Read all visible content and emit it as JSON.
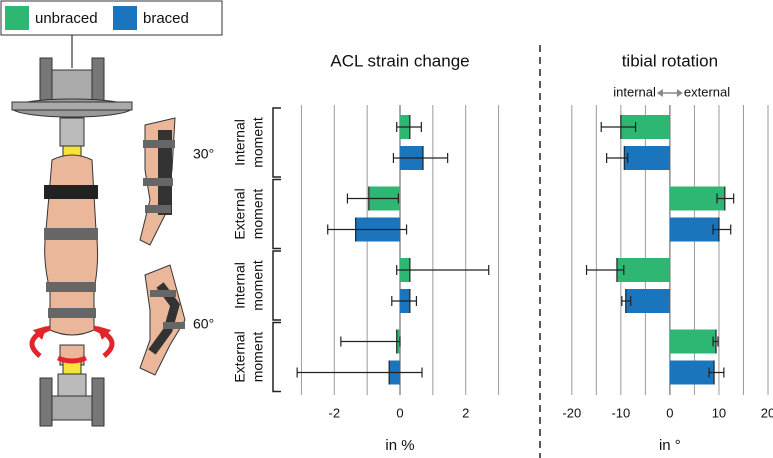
{
  "legend": {
    "box": true
  },
  "annotations": [
    "30°",
    "60°"
  ],
  "chart_data": [
    {
      "type": "bar",
      "orientation": "horizontal",
      "title": "ACL strain change",
      "x_label": "in %",
      "groups": [
        [
          "Internal",
          "moment"
        ],
        [
          "External",
          "moment"
        ],
        [
          "Internal",
          "moment"
        ],
        [
          "External",
          "moment"
        ]
      ],
      "series": [
        {
          "name": "unbraced",
          "color": "#2eb673",
          "values": [
            0.3,
            -0.95,
            0.3,
            -0.1
          ],
          "err_low": [
            0.4,
            0.65,
            0.4,
            1.7
          ],
          "err_high": [
            0.35,
            0.9,
            2.4,
            0.1
          ]
        },
        {
          "name": "braced",
          "color": "#1a75bd",
          "values": [
            0.7,
            -1.35,
            0.3,
            -0.33
          ],
          "err_low": [
            0.9,
            0.85,
            0.55,
            2.8
          ],
          "err_high": [
            0.75,
            1.55,
            0.2,
            1.0
          ]
        }
      ],
      "xlim": [
        -3.5,
        3.5
      ],
      "xticks": [
        -2,
        0,
        2
      ],
      "minor_grid": [
        -3,
        -1,
        1,
        3
      ],
      "grid": true
    },
    {
      "type": "bar",
      "orientation": "horizontal",
      "title": "tibial rotation",
      "x_label": "in °",
      "direction_labels": [
        "internal",
        "external"
      ],
      "series": [
        {
          "color": "#2eb673",
          "values": [
            -10,
            11.2,
            -10.8,
            9.4
          ],
          "err_low": [
            4,
            1.6,
            6.2,
            0.6
          ],
          "err_high": [
            3,
            1.8,
            1.4,
            0.4
          ]
        },
        {
          "color": "#1a75bd",
          "values": [
            -9.3,
            10,
            -9,
            9
          ],
          "err_low": [
            3.6,
            1.2,
            0.8,
            1
          ],
          "err_high": [
            0.7,
            2.4,
            1,
            2
          ]
        }
      ],
      "xlim": [
        -22,
        20
      ],
      "xticks": [
        -20,
        -10,
        0,
        10,
        20
      ],
      "minor_grid": [
        -15,
        -5,
        5,
        15
      ],
      "grid": true
    }
  ]
}
